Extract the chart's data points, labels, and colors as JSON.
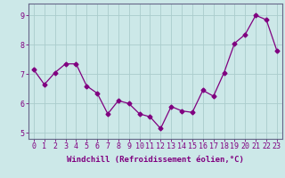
{
  "x": [
    0,
    1,
    2,
    3,
    4,
    5,
    6,
    7,
    8,
    9,
    10,
    11,
    12,
    13,
    14,
    15,
    16,
    17,
    18,
    19,
    20,
    21,
    22,
    23
  ],
  "y": [
    7.15,
    6.65,
    7.05,
    7.35,
    7.35,
    6.6,
    6.35,
    5.65,
    6.1,
    6.0,
    5.65,
    5.55,
    5.15,
    5.9,
    5.75,
    5.7,
    6.45,
    6.25,
    7.05,
    8.05,
    8.35,
    9.0,
    8.85,
    7.8
  ],
  "line_color": "#800080",
  "marker": "D",
  "marker_size": 2.5,
  "bg_color": "#cce8e8",
  "grid_color": "#aacccc",
  "spine_color": "#666688",
  "tick_color": "#800080",
  "label_color": "#800080",
  "xlabel": "Windchill (Refroidissement éolien,°C)",
  "xlim": [
    -0.5,
    23.5
  ],
  "ylim": [
    4.8,
    9.4
  ],
  "yticks": [
    5,
    6,
    7,
    8,
    9
  ],
  "xticks": [
    0,
    1,
    2,
    3,
    4,
    5,
    6,
    7,
    8,
    9,
    10,
    11,
    12,
    13,
    14,
    15,
    16,
    17,
    18,
    19,
    20,
    21,
    22,
    23
  ],
  "xlabel_fontsize": 6.5,
  "tick_fontsize": 6.0
}
